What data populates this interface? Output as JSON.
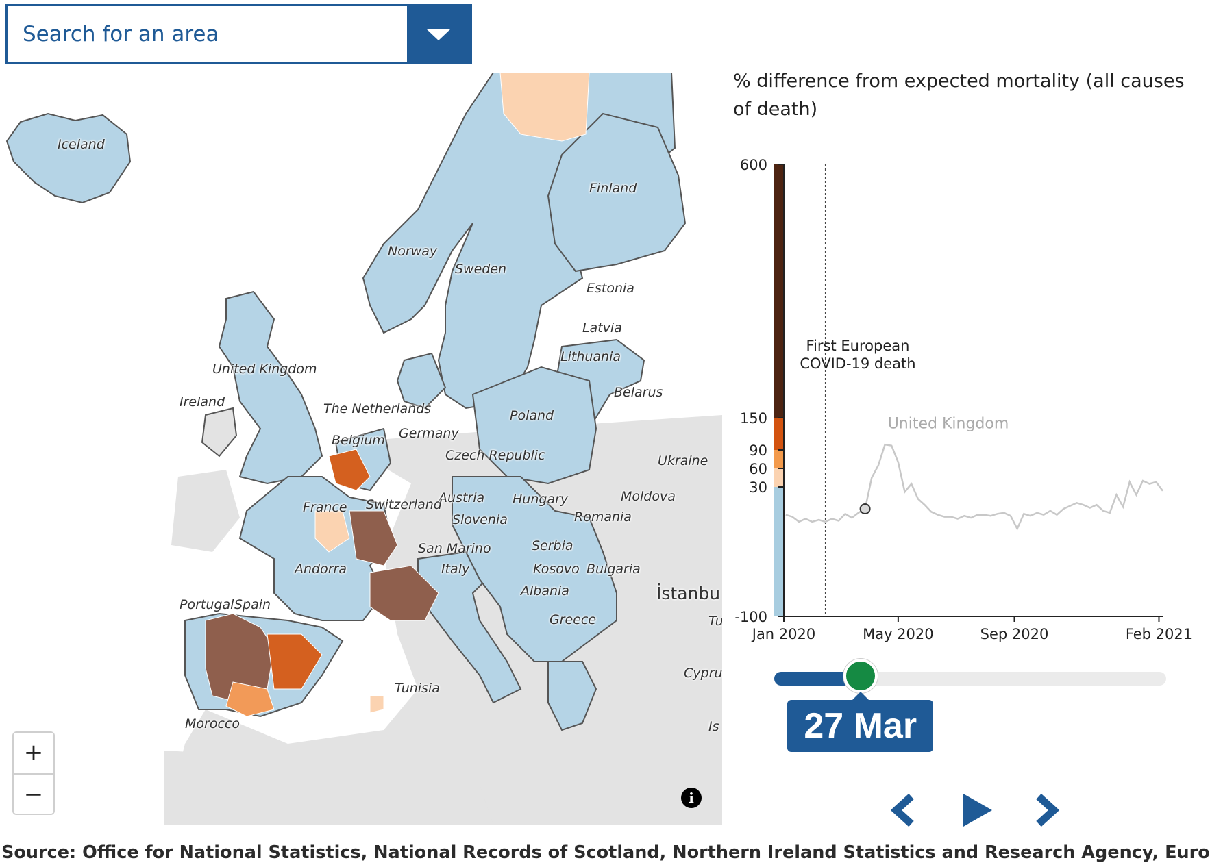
{
  "search": {
    "placeholder": "Search for an area"
  },
  "map": {
    "labels": {
      "iceland": "Iceland",
      "finland": "Finland",
      "norway": "Norway",
      "sweden": "Sweden",
      "estonia": "Estonia",
      "latvia": "Latvia",
      "lithuania": "Lithuania",
      "united_kingdom": "United Kingdom",
      "ireland": "Ireland",
      "netherlands": "The Netherlands",
      "belarus": "Belarus",
      "poland": "Poland",
      "germany": "Germany",
      "belgium": "Belgium",
      "czech_republic": "Czech Republic",
      "ukraine": "Ukraine",
      "austria": "Austria",
      "hungary": "Hungary",
      "moldova": "Moldova",
      "france": "France",
      "switzerland": "Switzerland",
      "slovenia": "Slovenia",
      "romania": "Romania",
      "serbia": "Serbia",
      "san_marino": "San Marino",
      "andorra": "Andorra",
      "kosovo": "Kosovo",
      "bulgaria": "Bulgaria",
      "italy": "Italy",
      "albania": "Albania",
      "istanbul": "İstanbu",
      "portugal": "Portugal",
      "spain": "Spain",
      "greece": "Greece",
      "tu": "Tu",
      "cyprus": "Cyprus",
      "tunisia": "Tunisia",
      "morocco": "Morocco",
      "is": "Is"
    },
    "zoom_in": "+",
    "zoom_out": "−",
    "info": "i",
    "colors": {
      "sea": "#ffffff",
      "land": "#e3e3e3",
      "nodata": "#e6e6e6",
      "low": "#b5d4e6",
      "c30": "#fbd3b1",
      "c60": "#f29a58",
      "c90": "#d4601f",
      "c150": "#8f5f4d"
    }
  },
  "chart": {
    "title": "% difference from expected mortality (all causes of death)",
    "annotation_line1": "First European",
    "annotation_line2": "COVID-19 death",
    "series_label": "United Kingdom"
  },
  "chart_data": {
    "type": "line",
    "title": "% difference from expected mortality (all causes of death)",
    "ylim": [
      -100,
      600
    ],
    "y_ticks": [
      "600",
      "150",
      "90",
      "60",
      "30",
      "-100"
    ],
    "x_ticks": [
      "Jan 2020",
      "May 2020",
      "Sep 2020",
      "Feb 2021"
    ],
    "color_scale": [
      {
        "from": -100,
        "to": 30,
        "color": "#a8cde0"
      },
      {
        "from": 30,
        "to": 60,
        "color": "#fbd3b1"
      },
      {
        "from": 60,
        "to": 90,
        "color": "#f39a4b"
      },
      {
        "from": 90,
        "to": 150,
        "color": "#d3530f"
      },
      {
        "from": 150,
        "to": 600,
        "color": "#4d2412"
      }
    ],
    "annotation": {
      "label": "First European COVID-19 death",
      "x": "2020-02-14"
    },
    "series": [
      {
        "name": "United Kingdom",
        "x": [
          "2020-01-03",
          "2020-01-10",
          "2020-01-17",
          "2020-01-24",
          "2020-01-31",
          "2020-02-07",
          "2020-02-14",
          "2020-02-21",
          "2020-02-28",
          "2020-03-06",
          "2020-03-13",
          "2020-03-20",
          "2020-03-27",
          "2020-04-03",
          "2020-04-10",
          "2020-04-17",
          "2020-04-24",
          "2020-05-01",
          "2020-05-08",
          "2020-05-15",
          "2020-05-22",
          "2020-05-29",
          "2020-06-05",
          "2020-06-12",
          "2020-06-19",
          "2020-06-26",
          "2020-07-03",
          "2020-07-10",
          "2020-07-17",
          "2020-07-24",
          "2020-07-31",
          "2020-08-07",
          "2020-08-14",
          "2020-08-21",
          "2020-08-28",
          "2020-09-04",
          "2020-09-11",
          "2020-09-18",
          "2020-09-25",
          "2020-10-02",
          "2020-10-09",
          "2020-10-16",
          "2020-10-23",
          "2020-10-30",
          "2020-11-06",
          "2020-11-13",
          "2020-11-20",
          "2020-11-27",
          "2020-12-04",
          "2020-12-11",
          "2020-12-18",
          "2020-12-25",
          "2021-01-01",
          "2021-01-08",
          "2021-01-15",
          "2021-01-22",
          "2021-01-29",
          "2021-02-05"
        ],
        "values": [
          2,
          0,
          -5,
          -2,
          -5,
          -3,
          -5,
          -2,
          -4,
          3,
          -1,
          4,
          8,
          45,
          65,
          100,
          98,
          70,
          25,
          35,
          18,
          12,
          5,
          2,
          0,
          0,
          -2,
          1,
          -1,
          2,
          2,
          1,
          3,
          4,
          1,
          -12,
          3,
          1,
          4,
          2,
          6,
          2,
          8,
          11,
          14,
          12,
          9,
          12,
          6,
          4,
          22,
          10,
          38,
          22,
          40,
          35,
          38,
          26
        ]
      }
    ],
    "current": {
      "date": "2020-03-27",
      "label": "27 Mar",
      "value": 8
    }
  },
  "slider": {
    "value": 0.22
  },
  "controls": {
    "prev": "previous-week",
    "play": "play",
    "next": "next-week"
  },
  "source": "Source: Office for National Statistics, National Records of Scotland, Northern Ireland Statistics and Research Agency, Eurostat"
}
